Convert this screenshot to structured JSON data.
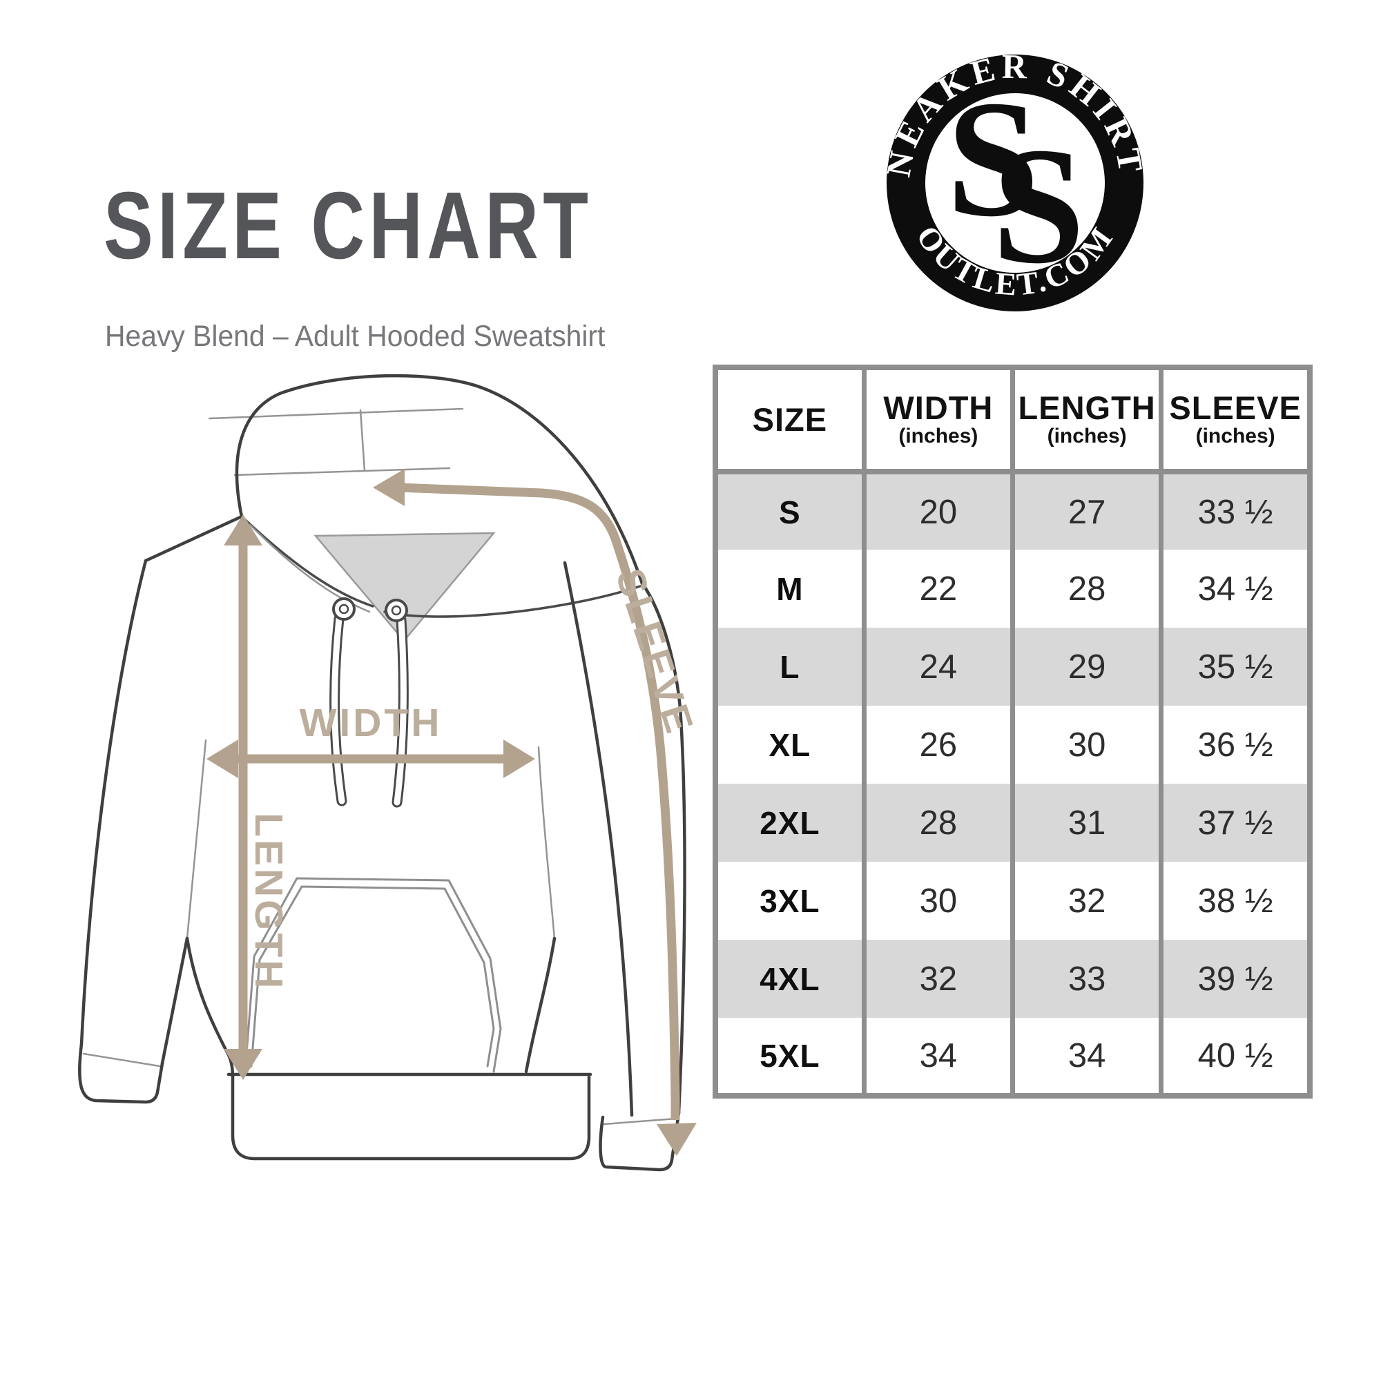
{
  "page": {
    "title": "SIZE CHART",
    "subtitle": "Heavy Blend – Adult Hooded Sweatshirt"
  },
  "logo": {
    "top_text": "SNEAKER SHIRTS",
    "bottom_text": "OUTLET.COM",
    "monogram_letter_1": "S",
    "monogram_letter_2": "S"
  },
  "diagram": {
    "width_label": "WIDTH",
    "length_label": "LENGTH",
    "sleeve_label": "SLEEVE"
  },
  "size_table": {
    "columns": [
      {
        "label": "SIZE",
        "unit": ""
      },
      {
        "label": "WIDTH",
        "unit": "(inches)"
      },
      {
        "label": "LENGTH",
        "unit": "(inches)"
      },
      {
        "label": "SLEEVE",
        "unit": "(inches)"
      }
    ],
    "rows": [
      {
        "size": "S",
        "width": "20",
        "length": "27",
        "sleeve": "33 ½"
      },
      {
        "size": "M",
        "width": "22",
        "length": "28",
        "sleeve": "34 ½"
      },
      {
        "size": "L",
        "width": "24",
        "length": "29",
        "sleeve": "35 ½"
      },
      {
        "size": "XL",
        "width": "26",
        "length": "30",
        "sleeve": "36 ½"
      },
      {
        "size": "2XL",
        "width": "28",
        "length": "31",
        "sleeve": "37 ½"
      },
      {
        "size": "3XL",
        "width": "30",
        "length": "32",
        "sleeve": "38 ½"
      },
      {
        "size": "4XL",
        "width": "32",
        "length": "33",
        "sleeve": "39 ½"
      },
      {
        "size": "5XL",
        "width": "34",
        "length": "34",
        "sleeve": "40 ½"
      }
    ]
  },
  "colors": {
    "title_gray": "#55565a",
    "subtitle_gray": "#76777a",
    "table_border_gray": "#8e8e8e",
    "row_shade_gray": "#d8d8d8",
    "measure_tan": "#b3a38e",
    "outline_dark": "#3f3f3f",
    "logo_black": "#0d0d0d"
  }
}
